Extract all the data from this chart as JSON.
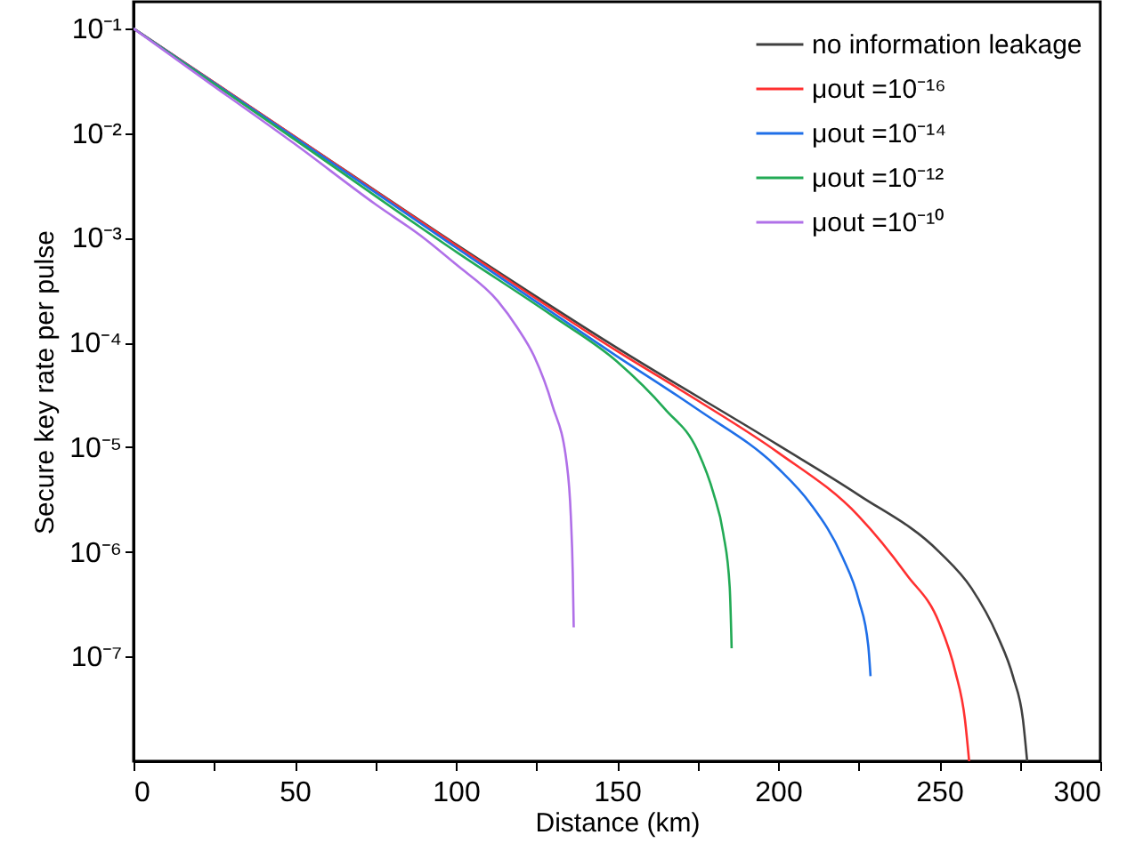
{
  "chart_data": {
    "type": "line",
    "xlabel": "Distance (km)",
    "ylabel": "Secure key rate per pulse",
    "log": "y",
    "grid": false,
    "legend": "top right",
    "marker": "none",
    "line_style": "solid",
    "xlim": [
      0,
      300
    ],
    "ylim": [
      1e-08,
      0.18
    ],
    "xticks": [
      0,
      {
        "value": 25,
        "label": null
      },
      50,
      {
        "value": 75,
        "label": null
      },
      100,
      {
        "value": 125,
        "label": null
      },
      150,
      {
        "value": 175,
        "label": null
      },
      200,
      {
        "value": 225,
        "label": null
      },
      250,
      {
        "value": 275,
        "label": null
      },
      300
    ],
    "yticks": [
      {
        "value": 0.1,
        "label": "10⁻¹"
      },
      {
        "value": 0.01,
        "label": "10⁻²"
      },
      {
        "value": 0.001,
        "label": "10⁻³"
      },
      {
        "value": 0.0001,
        "label": "10⁻⁴"
      },
      {
        "value": 1e-05,
        "label": "10⁻⁵"
      },
      {
        "value": 1e-06,
        "label": "10⁻⁶"
      },
      {
        "value": 1e-07,
        "label": "10⁻⁷"
      }
    ],
    "series": [
      {
        "name": "no information leakage",
        "color": "#404040",
        "x": [
          0,
          50,
          100,
          150,
          200,
          225,
          250,
          260,
          268,
          273,
          276,
          277.3
        ],
        "values": [
          0.1,
          0.0093,
          0.00087,
          8.9e-05,
          1.05e-05,
          3.5e-06,
          1e-06,
          4.5e-07,
          1.6e-07,
          6.3e-08,
          2.5e-08,
          1e-08
        ]
      },
      {
        "name": "μout =10⁻¹⁶",
        "color": "#ff3030",
        "x": [
          0,
          50,
          100,
          150,
          175,
          200,
          225,
          240,
          250,
          255,
          258,
          259.3
        ],
        "values": [
          0.1,
          0.0093,
          0.00085,
          8.3e-05,
          2.8e-05,
          8.9e-06,
          2.2e-06,
          6e-07,
          2.1e-07,
          7.2e-08,
          2.5e-08,
          1e-08
        ]
      },
      {
        "name": "μout =10⁻¹⁴",
        "color": "#1f6fe8",
        "x": [
          0,
          50,
          100,
          150,
          175,
          200,
          210,
          220,
          225,
          228,
          228.7
        ],
        "values": [
          0.1,
          0.0091,
          0.00081,
          7.4e-05,
          2.3e-05,
          6.3e-06,
          2.9e-06,
          8.9e-07,
          3.5e-07,
          1.26e-07,
          6.5e-08
        ]
      },
      {
        "name": "μout =10⁻¹²",
        "color": "#22aa55",
        "x": [
          0,
          50,
          100,
          130,
          150,
          165,
          175,
          180,
          183,
          185,
          185.6
        ],
        "values": [
          0.1,
          0.0087,
          0.00074,
          0.00018,
          6.6e-05,
          2.3e-05,
          9.3e-06,
          3.6e-06,
          1.5e-06,
          4.6e-07,
          1.2e-07
        ]
      },
      {
        "name": "μout =10⁻¹⁰",
        "color": "#b070e8",
        "x": [
          0,
          25,
          50,
          75,
          90,
          100,
          113,
          119,
          124.3,
          130,
          134.4,
          135.7,
          136.3,
          136.6
        ],
        "values": [
          0.1,
          0.028,
          0.0079,
          0.0021,
          0.001,
          0.00056,
          0.00025,
          0.00014,
          7.4e-05,
          2.5e-05,
          7.1e-06,
          2.2e-06,
          6.3e-07,
          1.9e-07
        ]
      }
    ]
  }
}
